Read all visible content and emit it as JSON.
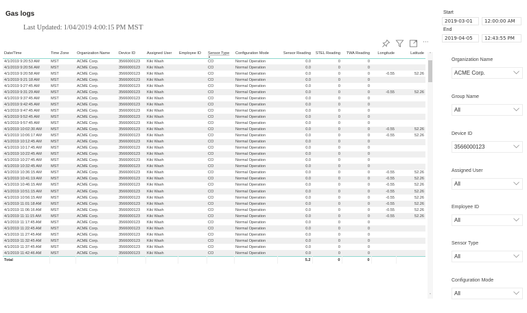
{
  "header": {
    "title": "Gas logs",
    "last_updated_prefix": "Last Updated: 1/04/2019 4:00:15 PM",
    "last_updated_tz": "MST"
  },
  "visual_toolbar": {
    "icons": [
      "pin-icon",
      "filter-icon",
      "focus-mode-icon",
      "more-options-icon"
    ],
    "more_label": "···"
  },
  "table": {
    "columns": [
      {
        "key": "datetime",
        "label": "Date/Time",
        "align": "left"
      },
      {
        "key": "timezone",
        "label": "Time Zone",
        "align": "left"
      },
      {
        "key": "org",
        "label": "Organization Name",
        "align": "left"
      },
      {
        "key": "device",
        "label": "Device ID",
        "align": "left"
      },
      {
        "key": "user",
        "label": "Assigned User",
        "align": "left"
      },
      {
        "key": "employee",
        "label": "Employee ID",
        "align": "left"
      },
      {
        "key": "sensor_type",
        "label": "Sensor Type",
        "align": "left",
        "sorted": "ascending"
      },
      {
        "key": "config",
        "label": "Configuration Mode",
        "align": "left"
      },
      {
        "key": "sensor_reading",
        "label": "Sensor Reading",
        "align": "right"
      },
      {
        "key": "stel",
        "label": "STEL Reading",
        "align": "right"
      },
      {
        "key": "twa",
        "label": "TWA Reading",
        "align": "right"
      },
      {
        "key": "lon",
        "label": "Longitude",
        "align": "right"
      },
      {
        "key": "lat",
        "label": "Latitude",
        "align": "right"
      }
    ],
    "sort_arrow": "▲",
    "rows": [
      [
        "4/1/2019 9:20:53 AM",
        "MST",
        "ACME Corp.",
        "3566000123",
        "Kiki Wash",
        "",
        "CO",
        "Normal Operation",
        "0.0",
        "0",
        "0",
        "",
        ""
      ],
      [
        "4/1/2019 9:20:56 AM",
        "MST",
        "ACME Corp.",
        "3566000123",
        "Kiki Wash",
        "",
        "CO",
        "Normal Operation",
        "0.0",
        "0",
        "0",
        "",
        ""
      ],
      [
        "4/1/2019 9:20:58 AM",
        "MST",
        "ACME Corp.",
        "3566000123",
        "Kiki Wash",
        "",
        "CO",
        "Normal Operation",
        "0.0",
        "0",
        "0",
        "-0.55",
        "52.26"
      ],
      [
        "4/1/2019 9:21:18 AM",
        "MST",
        "ACME Corp.",
        "3566000123",
        "Kiki Wash",
        "",
        "CO",
        "Normal Operation",
        "0.0",
        "0",
        "0",
        "",
        ""
      ],
      [
        "4/1/2019 9:27:45 AM",
        "MST",
        "ACME Corp.",
        "3566000123",
        "Kiki Wash",
        "",
        "CO",
        "Normal Operation",
        "0.0",
        "0",
        "0",
        "",
        ""
      ],
      [
        "4/1/2019 9:31:29 AM",
        "MST",
        "ACME Corp.",
        "3566000123",
        "Kiki Wash",
        "",
        "CO",
        "Normal Operation",
        "0.0",
        "0",
        "0",
        "-0.55",
        "52.26"
      ],
      [
        "4/1/2019 9:37:45 AM",
        "MST",
        "ACME Corp.",
        "3566000123",
        "Kiki Wash",
        "",
        "CO",
        "Normal Operation",
        "0.0",
        "0",
        "0",
        "",
        ""
      ],
      [
        "4/1/2019 9:42:45 AM",
        "MST",
        "ACME Corp.",
        "3566000123",
        "Kiki Wash",
        "",
        "CO",
        "Normal Operation",
        "0.0",
        "0",
        "0",
        "",
        ""
      ],
      [
        "4/1/2019 9:47:45 AM",
        "MST",
        "ACME Corp.",
        "3566000123",
        "Kiki Wash",
        "",
        "CO",
        "Normal Operation",
        "0.0",
        "0",
        "0",
        "",
        ""
      ],
      [
        "4/1/2019 9:52:45 AM",
        "MST",
        "ACME Corp.",
        "3566000123",
        "Kiki Wash",
        "",
        "CO",
        "Normal Operation",
        "0.0",
        "0",
        "0",
        "",
        ""
      ],
      [
        "4/1/2019 9:57:45 AM",
        "MST",
        "ACME Corp.",
        "3566000123",
        "Kiki Wash",
        "",
        "CO",
        "Normal Operation",
        "0.0",
        "0",
        "0",
        "",
        ""
      ],
      [
        "4/1/2019 10:02:30 AM",
        "MST",
        "ACME Corp.",
        "3566000123",
        "Kiki Wash",
        "",
        "CO",
        "Normal Operation",
        "0.0",
        "0",
        "0",
        "-0.55",
        "52.26"
      ],
      [
        "4/1/2019 10:06:17 AM",
        "MST",
        "ACME Corp.",
        "3566000123",
        "Kiki Wash",
        "",
        "CO",
        "Normal Operation",
        "0.0",
        "0",
        "0",
        "-0.55",
        "52.26"
      ],
      [
        "4/1/2019 10:12:45 AM",
        "MST",
        "ACME Corp.",
        "3566000123",
        "Kiki Wash",
        "",
        "CO",
        "Normal Operation",
        "0.0",
        "0",
        "0",
        "",
        ""
      ],
      [
        "4/1/2019 10:17:45 AM",
        "MST",
        "ACME Corp.",
        "3566000123",
        "Kiki Wash",
        "",
        "CO",
        "Normal Operation",
        "0.0",
        "0",
        "0",
        "",
        ""
      ],
      [
        "4/1/2019 10:22:45 AM",
        "MST",
        "ACME Corp.",
        "3566000123",
        "Kiki Wash",
        "",
        "CO",
        "Normal Operation",
        "0.0",
        "0",
        "0",
        "",
        ""
      ],
      [
        "4/1/2019 10:27:45 AM",
        "MST",
        "ACME Corp.",
        "3566000123",
        "Kiki Wash",
        "",
        "CO",
        "Normal Operation",
        "0.0",
        "0",
        "0",
        "",
        ""
      ],
      [
        "4/1/2019 10:32:45 AM",
        "MST",
        "ACME Corp.",
        "3566000123",
        "Kiki Wash",
        "",
        "CO",
        "Normal Operation",
        "0.0",
        "0",
        "0",
        "",
        ""
      ],
      [
        "4/1/2019 10:36:15 AM",
        "MST",
        "ACME Corp.",
        "3566000123",
        "Kiki Wash",
        "",
        "CO",
        "Normal Operation",
        "0.0",
        "0",
        "0",
        "-0.55",
        "52.26"
      ],
      [
        "4/1/2019 10:41:19 AM",
        "MST",
        "ACME Corp.",
        "3566000123",
        "Kiki Wash",
        "",
        "CO",
        "Normal Operation",
        "0.0",
        "0",
        "0",
        "-0.55",
        "52.26"
      ],
      [
        "4/1/2019 10:46:15 AM",
        "MST",
        "ACME Corp.",
        "3566000123",
        "Kiki Wash",
        "",
        "CO",
        "Normal Operation",
        "0.0",
        "0",
        "0",
        "-0.55",
        "52.26"
      ],
      [
        "4/1/2019 10:51:15 AM",
        "MST",
        "ACME Corp.",
        "3566000123",
        "Kiki Wash",
        "",
        "CO",
        "Normal Operation",
        "0.0",
        "0",
        "0",
        "-0.55",
        "52.26"
      ],
      [
        "4/1/2019 10:56:15 AM",
        "MST",
        "ACME Corp.",
        "3566000123",
        "Kiki Wash",
        "",
        "CO",
        "Normal Operation",
        "0.0",
        "0",
        "0",
        "-0.55",
        "52.26"
      ],
      [
        "4/1/2019 11:01:18 AM",
        "MST",
        "ACME Corp.",
        "3566000123",
        "Kiki Wash",
        "",
        "CO",
        "Normal Operation",
        "0.0",
        "0",
        "0",
        "-0.55",
        "52.26"
      ],
      [
        "4/1/2019 11:06:16 AM",
        "MST",
        "ACME Corp.",
        "3566000123",
        "Kiki Wash",
        "",
        "CO",
        "Normal Operation",
        "0.0",
        "0",
        "0",
        "-0.55",
        "52.26"
      ],
      [
        "4/1/2019 11:11:15 AM",
        "MST",
        "ACME Corp.",
        "3566000123",
        "Kiki Wash",
        "",
        "CO",
        "Normal Operation",
        "0.0",
        "0",
        "0",
        "-0.55",
        "52.26"
      ],
      [
        "4/1/2019 11:17:45 AM",
        "MST",
        "ACME Corp.",
        "3566000123",
        "Kiki Wash",
        "",
        "CO",
        "Normal Operation",
        "0.0",
        "0",
        "0",
        "",
        ""
      ],
      [
        "4/1/2019 11:22:45 AM",
        "MST",
        "ACME Corp.",
        "3566000123",
        "Kiki Wash",
        "",
        "CO",
        "Normal Operation",
        "0.0",
        "0",
        "0",
        "",
        ""
      ],
      [
        "4/1/2019 11:27:45 AM",
        "MST",
        "ACME Corp.",
        "3566000123",
        "Kiki Wash",
        "",
        "CO",
        "Normal Operation",
        "0.0",
        "0",
        "0",
        "",
        ""
      ],
      [
        "4/1/2019 11:32:45 AM",
        "MST",
        "ACME Corp.",
        "3566000123",
        "Kiki Wash",
        "",
        "CO",
        "Normal Operation",
        "0.0",
        "0",
        "0",
        "",
        ""
      ],
      [
        "4/1/2019 11:37:45 AM",
        "MST",
        "ACME Corp.",
        "3566000123",
        "Kiki Wash",
        "",
        "CO",
        "Normal Operation",
        "0.0",
        "0",
        "0",
        "",
        ""
      ],
      [
        "4/1/2019 11:42:46 AM",
        "MST",
        "ACME Corp.",
        "3566000123",
        "Kiki Wash",
        "",
        "CO",
        "Normal Operation",
        "0.0",
        "0",
        "0",
        "",
        ""
      ]
    ],
    "totals": {
      "label": "Total",
      "sensor_reading": "5.2",
      "stel": "0",
      "twa": "0"
    }
  },
  "date_range": {
    "start_label": "Start",
    "start_date": "2019-03-01",
    "start_time": "12:00:00 AM",
    "end_label": "End",
    "end_date": "2019-04-05",
    "end_time": "12:43:55 PM"
  },
  "slicers": [
    {
      "label": "Organization Name",
      "value": "ACME Corp."
    },
    {
      "label": "Group Name",
      "value": "All"
    },
    {
      "label": "Device ID",
      "value": "3566000123"
    },
    {
      "label": "Assigned User",
      "value": "All"
    },
    {
      "label": "Employee ID",
      "value": "All"
    },
    {
      "label": "Sensor Type",
      "value": "All"
    },
    {
      "label": "Configuration Mode",
      "value": "All"
    }
  ],
  "colors": {
    "header_accent": "#8fd9cf",
    "row_stripe": "#efefef",
    "text": "#333333"
  }
}
